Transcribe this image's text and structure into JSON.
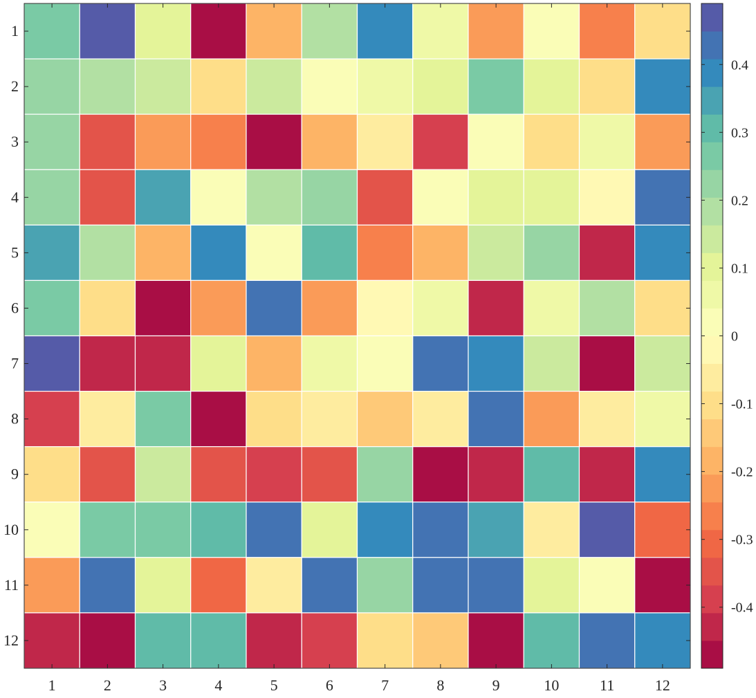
{
  "chart_data": {
    "type": "heatmap",
    "title": "",
    "xlabel": "",
    "ylabel": "",
    "x_ticks": [
      "1",
      "2",
      "3",
      "4",
      "5",
      "6",
      "7",
      "8",
      "9",
      "10",
      "11",
      "12"
    ],
    "y_ticks": [
      "1",
      "2",
      "3",
      "4",
      "5",
      "6",
      "7",
      "8",
      "9",
      "10",
      "11",
      "12"
    ],
    "colorbar": {
      "min": -0.49,
      "max": 0.49,
      "levels": 24,
      "ticks": [
        -0.4,
        -0.3,
        -0.2,
        -0.1,
        0,
        0.1,
        0.2,
        0.3,
        0.4
      ],
      "tick_labels": [
        "-0.4",
        "-0.3",
        "-0.2",
        "-0.1",
        "0",
        "0.1",
        "0.2",
        "0.3",
        "0.4"
      ],
      "colormap": [
        "#9e0142",
        "#d53e4f",
        "#f46d43",
        "#fdae61",
        "#fee08b",
        "#ffffbf",
        "#e6f598",
        "#abdda4",
        "#66c2a5",
        "#3288bd",
        "#5e4fa2"
      ]
    },
    "grid_line_color": "#ffffff",
    "values": [
      [
        0.27,
        0.47,
        0.12,
        -0.45,
        -0.18,
        0.17,
        0.38,
        0.08,
        -0.24,
        0.01,
        -0.25,
        -0.12
      ],
      [
        0.21,
        0.2,
        0.14,
        -0.1,
        0.13,
        0.01,
        0.06,
        0.11,
        0.28,
        0.1,
        -0.11,
        0.38
      ],
      [
        0.24,
        -0.35,
        -0.24,
        -0.28,
        -0.45,
        -0.18,
        -0.08,
        -0.39,
        0.03,
        -0.11,
        0.05,
        -0.24
      ],
      [
        0.24,
        -0.35,
        0.34,
        0.01,
        0.2,
        0.23,
        -0.35,
        0.01,
        0.09,
        0.1,
        -0.03,
        0.42
      ],
      [
        0.34,
        0.17,
        -0.2,
        0.38,
        0.01,
        0.31,
        -0.28,
        -0.19,
        0.14,
        0.24,
        -0.41,
        0.38
      ],
      [
        0.25,
        -0.12,
        -0.48,
        -0.23,
        0.43,
        -0.23,
        -0.04,
        0.07,
        -0.42,
        0.06,
        0.19,
        -0.11
      ],
      [
        0.47,
        -0.41,
        -0.41,
        0.09,
        -0.2,
        0.06,
        0.04,
        0.43,
        0.37,
        0.13,
        -0.48,
        0.13
      ],
      [
        -0.38,
        -0.07,
        0.27,
        -0.48,
        -0.1,
        -0.07,
        -0.14,
        -0.07,
        0.43,
        -0.23,
        -0.07,
        0.07
      ],
      [
        -0.12,
        -0.35,
        0.15,
        -0.36,
        -0.38,
        -0.34,
        0.23,
        -0.48,
        -0.41,
        0.32,
        -0.44,
        0.38
      ],
      [
        0.01,
        0.26,
        0.27,
        0.31,
        0.43,
        0.09,
        0.38,
        0.42,
        0.34,
        -0.08,
        0.46,
        -0.31
      ],
      [
        -0.23,
        0.42,
        0.09,
        -0.29,
        -0.06,
        0.44,
        0.21,
        0.42,
        0.42,
        0.11,
        0.03,
        -0.48
      ],
      [
        -0.44,
        -0.48,
        0.32,
        0.32,
        -0.41,
        -0.38,
        -0.09,
        -0.14,
        -0.48,
        0.32,
        0.42,
        0.38
      ]
    ]
  }
}
